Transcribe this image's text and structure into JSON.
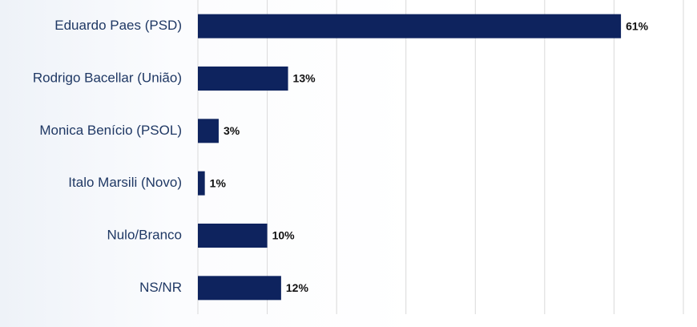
{
  "chart_data": {
    "type": "hbar",
    "categories": [
      "Eduardo Paes (PSD)",
      "Rodrigo Bacellar (União)",
      "Monica Benício (PSOL)",
      "Italo Marsili (Novo)",
      "Nulo/Branco",
      "NS/NR"
    ],
    "values": [
      61,
      13,
      3,
      1,
      10,
      12
    ],
    "value_labels": [
      "61%",
      "13%",
      "3%",
      "1%",
      "10%",
      "12%"
    ],
    "color": "#0e235e",
    "xlim": [
      0,
      70
    ],
    "xticks": [
      0,
      10,
      20,
      30,
      40,
      50,
      60,
      70
    ],
    "grid": true
  }
}
